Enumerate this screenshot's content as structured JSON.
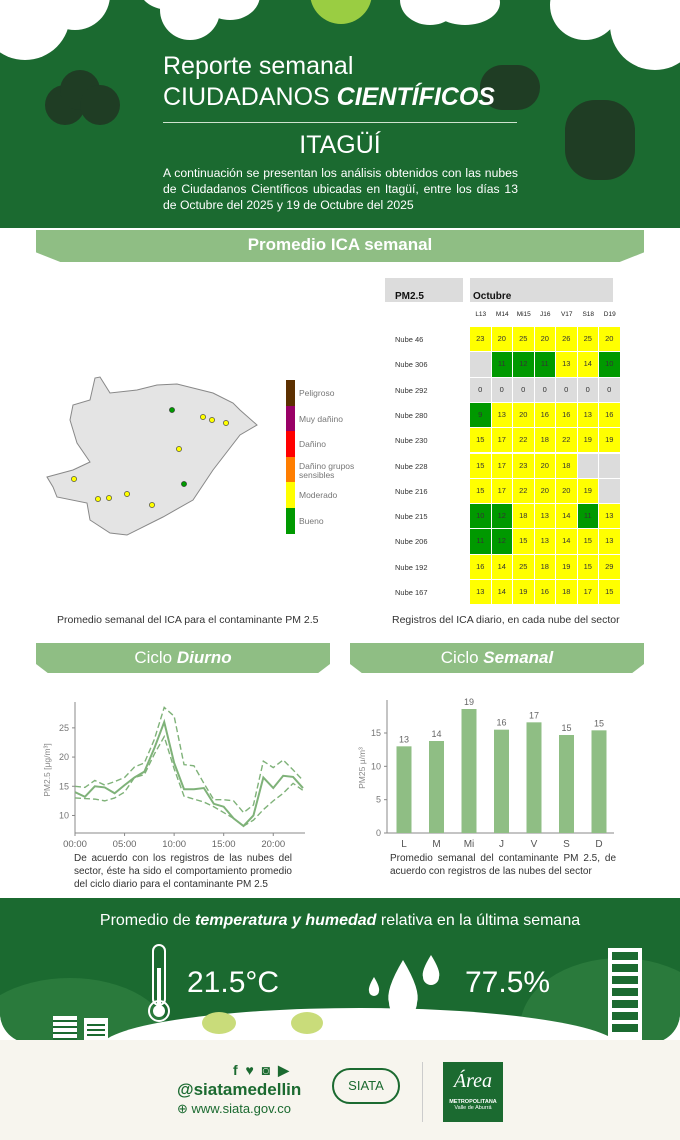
{
  "header": {
    "title_line1": "Reporte semanal",
    "title_line2_regular": "CIUDADANOS ",
    "title_line2_bold": "CIENTÍFICOS",
    "location": "ITAGÜÍ",
    "intro": "A continuación se presentan los análisis obtenidos con las nubes de Ciudadanos Científicos ubicadas en Itagüí, entre los días 13 de Octubre del 2025 y 19 de Octubre del 2025"
  },
  "ica_section": {
    "title": "Promedio ICA semanal",
    "map_caption": "Promedio semanal del ICA para el contaminante PM 2.5",
    "table_caption": "Registros del ICA diario, en cada nube del sector",
    "legend": [
      {
        "label": "Peligroso",
        "color": "#5c3000"
      },
      {
        "label": "Muy dañino",
        "color": "#990066"
      },
      {
        "label": "Dañino",
        "color": "#ff0000"
      },
      {
        "label": "Dañino grupos sensibles",
        "color": "#ff7e00"
      },
      {
        "label": "Moderado",
        "color": "#ffff00"
      },
      {
        "label": "Bueno",
        "color": "#009900"
      }
    ],
    "map_points": [
      {
        "level": "Bueno"
      },
      {
        "level": "Bueno"
      },
      {
        "level": "Moderado"
      },
      {
        "level": "Moderado"
      },
      {
        "level": "Moderado"
      },
      {
        "level": "Moderado"
      },
      {
        "level": "Moderado"
      },
      {
        "level": "Moderado"
      },
      {
        "level": "Moderado"
      },
      {
        "level": "Moderado"
      },
      {
        "level": "Moderado"
      }
    ],
    "table": {
      "corner": "PM2.5",
      "month": "Octubre",
      "days": [
        "L13",
        "M14",
        "Mi15",
        "J16",
        "V17",
        "S18",
        "D19"
      ],
      "rows": [
        {
          "name": "Nube 46",
          "values": [
            23,
            20,
            25,
            20,
            26,
            25,
            20
          ]
        },
        {
          "name": "Nube 306",
          "values": [
            null,
            11,
            12,
            11,
            13,
            14,
            10
          ]
        },
        {
          "name": "Nube 292",
          "values": [
            0,
            0,
            0,
            0,
            0,
            0,
            0
          ]
        },
        {
          "name": "Nube 280",
          "values": [
            9,
            13,
            20,
            16,
            16,
            13,
            16
          ]
        },
        {
          "name": "Nube 230",
          "values": [
            15,
            17,
            22,
            18,
            22,
            19,
            19
          ]
        },
        {
          "name": "Nube 228",
          "values": [
            15,
            17,
            23,
            20,
            18,
            null,
            null
          ]
        },
        {
          "name": "Nube 216",
          "values": [
            15,
            17,
            22,
            20,
            20,
            19,
            null
          ]
        },
        {
          "name": "Nube 215",
          "values": [
            10,
            12,
            18,
            13,
            14,
            11,
            13
          ]
        },
        {
          "name": "Nube 206",
          "values": [
            11,
            12,
            15,
            13,
            14,
            15,
            13
          ]
        },
        {
          "name": "Nube 192",
          "values": [
            16,
            14,
            25,
            18,
            19,
            15,
            29
          ]
        },
        {
          "name": "Nube 167",
          "values": [
            13,
            14,
            19,
            16,
            18,
            17,
            15
          ]
        }
      ]
    }
  },
  "diurno": {
    "title_regular": "Ciclo ",
    "title_bold": "Diurno",
    "caption": "De acuerdo con los registros de las nubes del sector, éste ha sido el comportamiento promedio del ciclo diario para el contaminante PM 2.5"
  },
  "semanal": {
    "title_regular": "Ciclo ",
    "title_bold": "Semanal",
    "caption": "Promedio semanal del contaminante PM 2.5, de acuerdo con registros de las nubes del sector"
  },
  "chart_data": [
    {
      "type": "line",
      "ylabel": "PM2.5 [μg/m³]",
      "xlim": [
        0,
        23
      ],
      "ylim": [
        7,
        29
      ],
      "x_ticks": [
        "00:00",
        "05:00",
        "10:00",
        "15:00",
        "20:00"
      ],
      "y_ticks": [
        10,
        15,
        20,
        25
      ],
      "x": [
        0,
        1,
        2,
        3,
        4,
        5,
        6,
        7,
        8,
        9,
        10,
        11,
        12,
        13,
        14,
        15,
        16,
        17,
        18,
        19,
        20,
        21,
        22,
        23
      ],
      "series": [
        {
          "style": "solid",
          "values": [
            14,
            13.2,
            15,
            14.8,
            13.8,
            15.2,
            16.5,
            17.5,
            21.5,
            26,
            19,
            14.5,
            14.5,
            14.7,
            12,
            11.5,
            9.5,
            8.2,
            10,
            16.5,
            14.7,
            16.8,
            16.6,
            14.7
          ]
        },
        {
          "style": "dashed",
          "values": [
            15,
            14.8,
            16,
            15.2,
            15.8,
            16.5,
            18.3,
            19,
            23,
            28.5,
            27,
            18.7,
            18.5,
            15.5,
            12.7,
            12.7,
            12.5,
            10.5,
            11.8,
            19.3,
            18.2,
            19.5,
            17.8,
            16
          ]
        },
        {
          "style": "dashed",
          "values": [
            13,
            12.9,
            12.8,
            12.5,
            13,
            14,
            16.5,
            17,
            20.5,
            23.5,
            18,
            13.3,
            12.8,
            12.3,
            11.5,
            10.5,
            9.5,
            8.2,
            9.2,
            11,
            12.5,
            13.8,
            15.5,
            14.3
          ]
        }
      ],
      "color": "#7fb279"
    },
    {
      "type": "bar",
      "ylabel": "PM25 μ/m³",
      "categories": [
        "L",
        "M",
        "Mi",
        "J",
        "V",
        "S",
        "D"
      ],
      "values": [
        13.0,
        13.8,
        18.6,
        15.5,
        16.6,
        14.7,
        15.4
      ],
      "labels": [
        "13",
        "14",
        "19",
        "16",
        "17",
        "15",
        "15"
      ],
      "ylim": [
        0,
        19.5
      ],
      "y_ticks": [
        0,
        5,
        10,
        15
      ],
      "color": "#8fbe84"
    }
  ],
  "weather": {
    "title_pre": "Promedio de ",
    "title_bold": "temperatura y humedad",
    "title_post": " relativa en la última semana",
    "temperature": "21.5°C",
    "humidity": "77.5%"
  },
  "footer": {
    "handle": "@siatamedellin",
    "website": "www.siata.gov.co",
    "siata_logo": "SIATA",
    "area_logo_script": "Área",
    "area_logo_line1": "METROPOLITANA",
    "area_logo_line2": "Valle de Aburrá"
  },
  "colors": {
    "dark_green": "#1b6a30",
    "banner_green": "#8fbe84",
    "yellow": "#ffff00",
    "green": "#009900",
    "gray": "#dcdcdc"
  }
}
